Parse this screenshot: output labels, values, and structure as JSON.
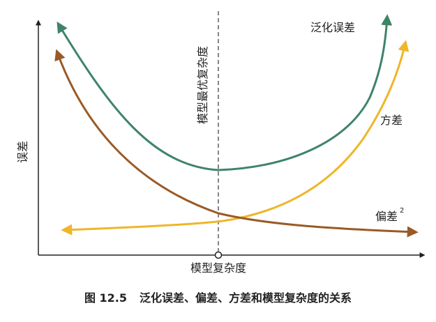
{
  "diagram": {
    "y_axis_label": "误差",
    "x_axis_label": "模型复杂度",
    "optimal_line_label": "模型最优复杂度",
    "curves": {
      "generalization": {
        "label": "泛化误差",
        "color": "#3e8468"
      },
      "variance": {
        "label": "方差",
        "color": "#f0b529"
      },
      "bias": {
        "label": "偏差",
        "label_superscript": "2",
        "color": "#9a5a26"
      }
    },
    "axis_color": "#222222"
  },
  "caption": {
    "number": "图 12.5",
    "text": "泛化误差、偏差、方差和模型复杂度的关系"
  }
}
